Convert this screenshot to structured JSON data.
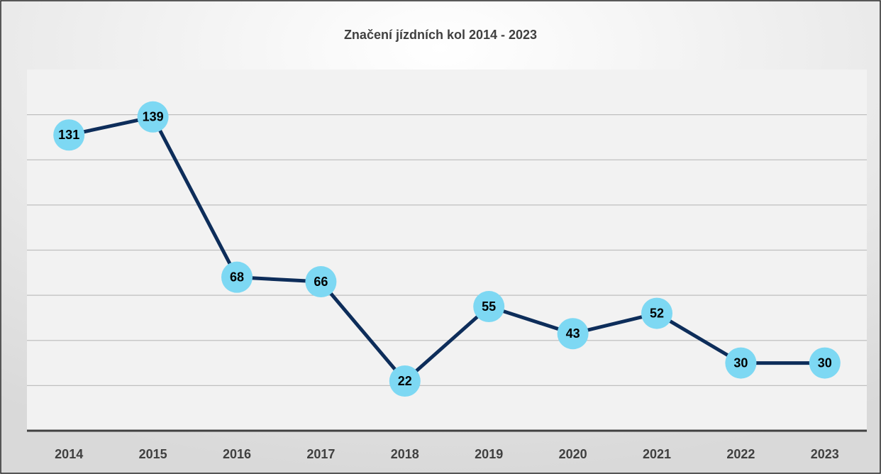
{
  "chart_data": {
    "type": "line",
    "title": "Značení jízdních kol 2014 - 2023",
    "categories": [
      "2014",
      "2015",
      "2016",
      "2017",
      "2018",
      "2019",
      "2020",
      "2021",
      "2022",
      "2023"
    ],
    "values": [
      131,
      139,
      68,
      66,
      22,
      55,
      43,
      52,
      30,
      30
    ],
    "color": "#0d2d5a",
    "marker_color": "#7dd8f3",
    "ylim": [
      0,
      160
    ],
    "yticks": [
      0,
      20,
      40,
      60,
      80,
      100,
      120,
      140
    ],
    "grid": true
  }
}
